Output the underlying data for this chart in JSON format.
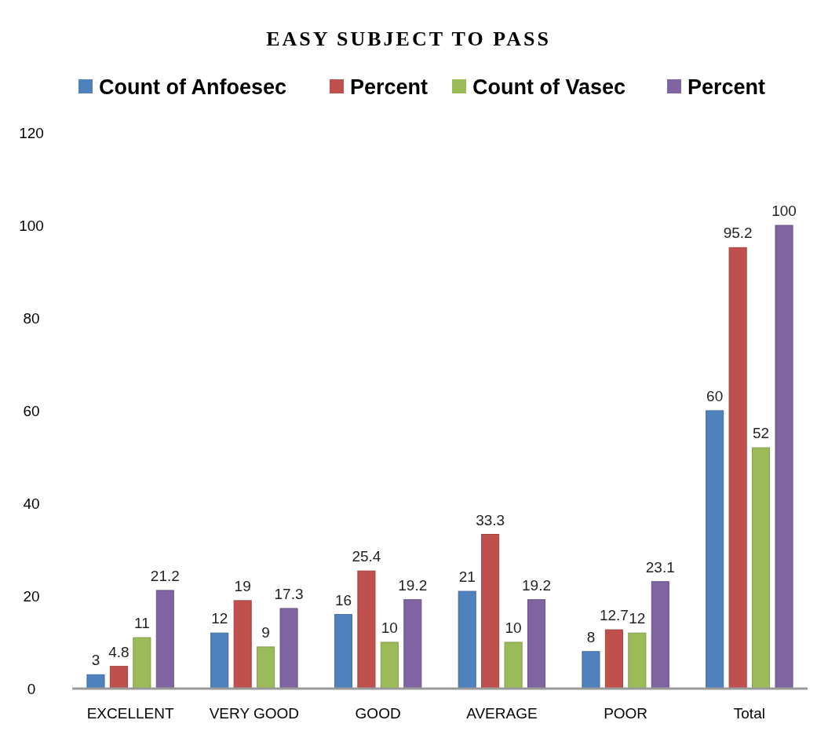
{
  "chart_data": {
    "type": "bar",
    "title": "EASY SUBJECT TO PASS",
    "categories": [
      "EXCELLENT",
      "VERY GOOD",
      "GOOD",
      "AVERAGE",
      "POOR",
      "Total"
    ],
    "series": [
      {
        "name": "Count of Anfoesec",
        "color": "#4f81bd",
        "values": [
          3,
          12,
          16,
          21,
          8,
          60
        ]
      },
      {
        "name": "Percent",
        "color": "#c0504d",
        "values": [
          4.8,
          19,
          25.4,
          33.3,
          12.7,
          95.2
        ]
      },
      {
        "name": "Count of Vasec",
        "color": "#9bbb59",
        "values": [
          11,
          9,
          10,
          10,
          12,
          52
        ]
      },
      {
        "name": "Percent",
        "color": "#8064a2",
        "values": [
          21.2,
          17.3,
          19.2,
          19.2,
          23.1,
          100
        ]
      }
    ],
    "ylim": [
      0,
      120
    ],
    "yticks": [
      0,
      20,
      40,
      60,
      80,
      100,
      120
    ],
    "grid": false,
    "legend": "top",
    "data_labels": true
  }
}
